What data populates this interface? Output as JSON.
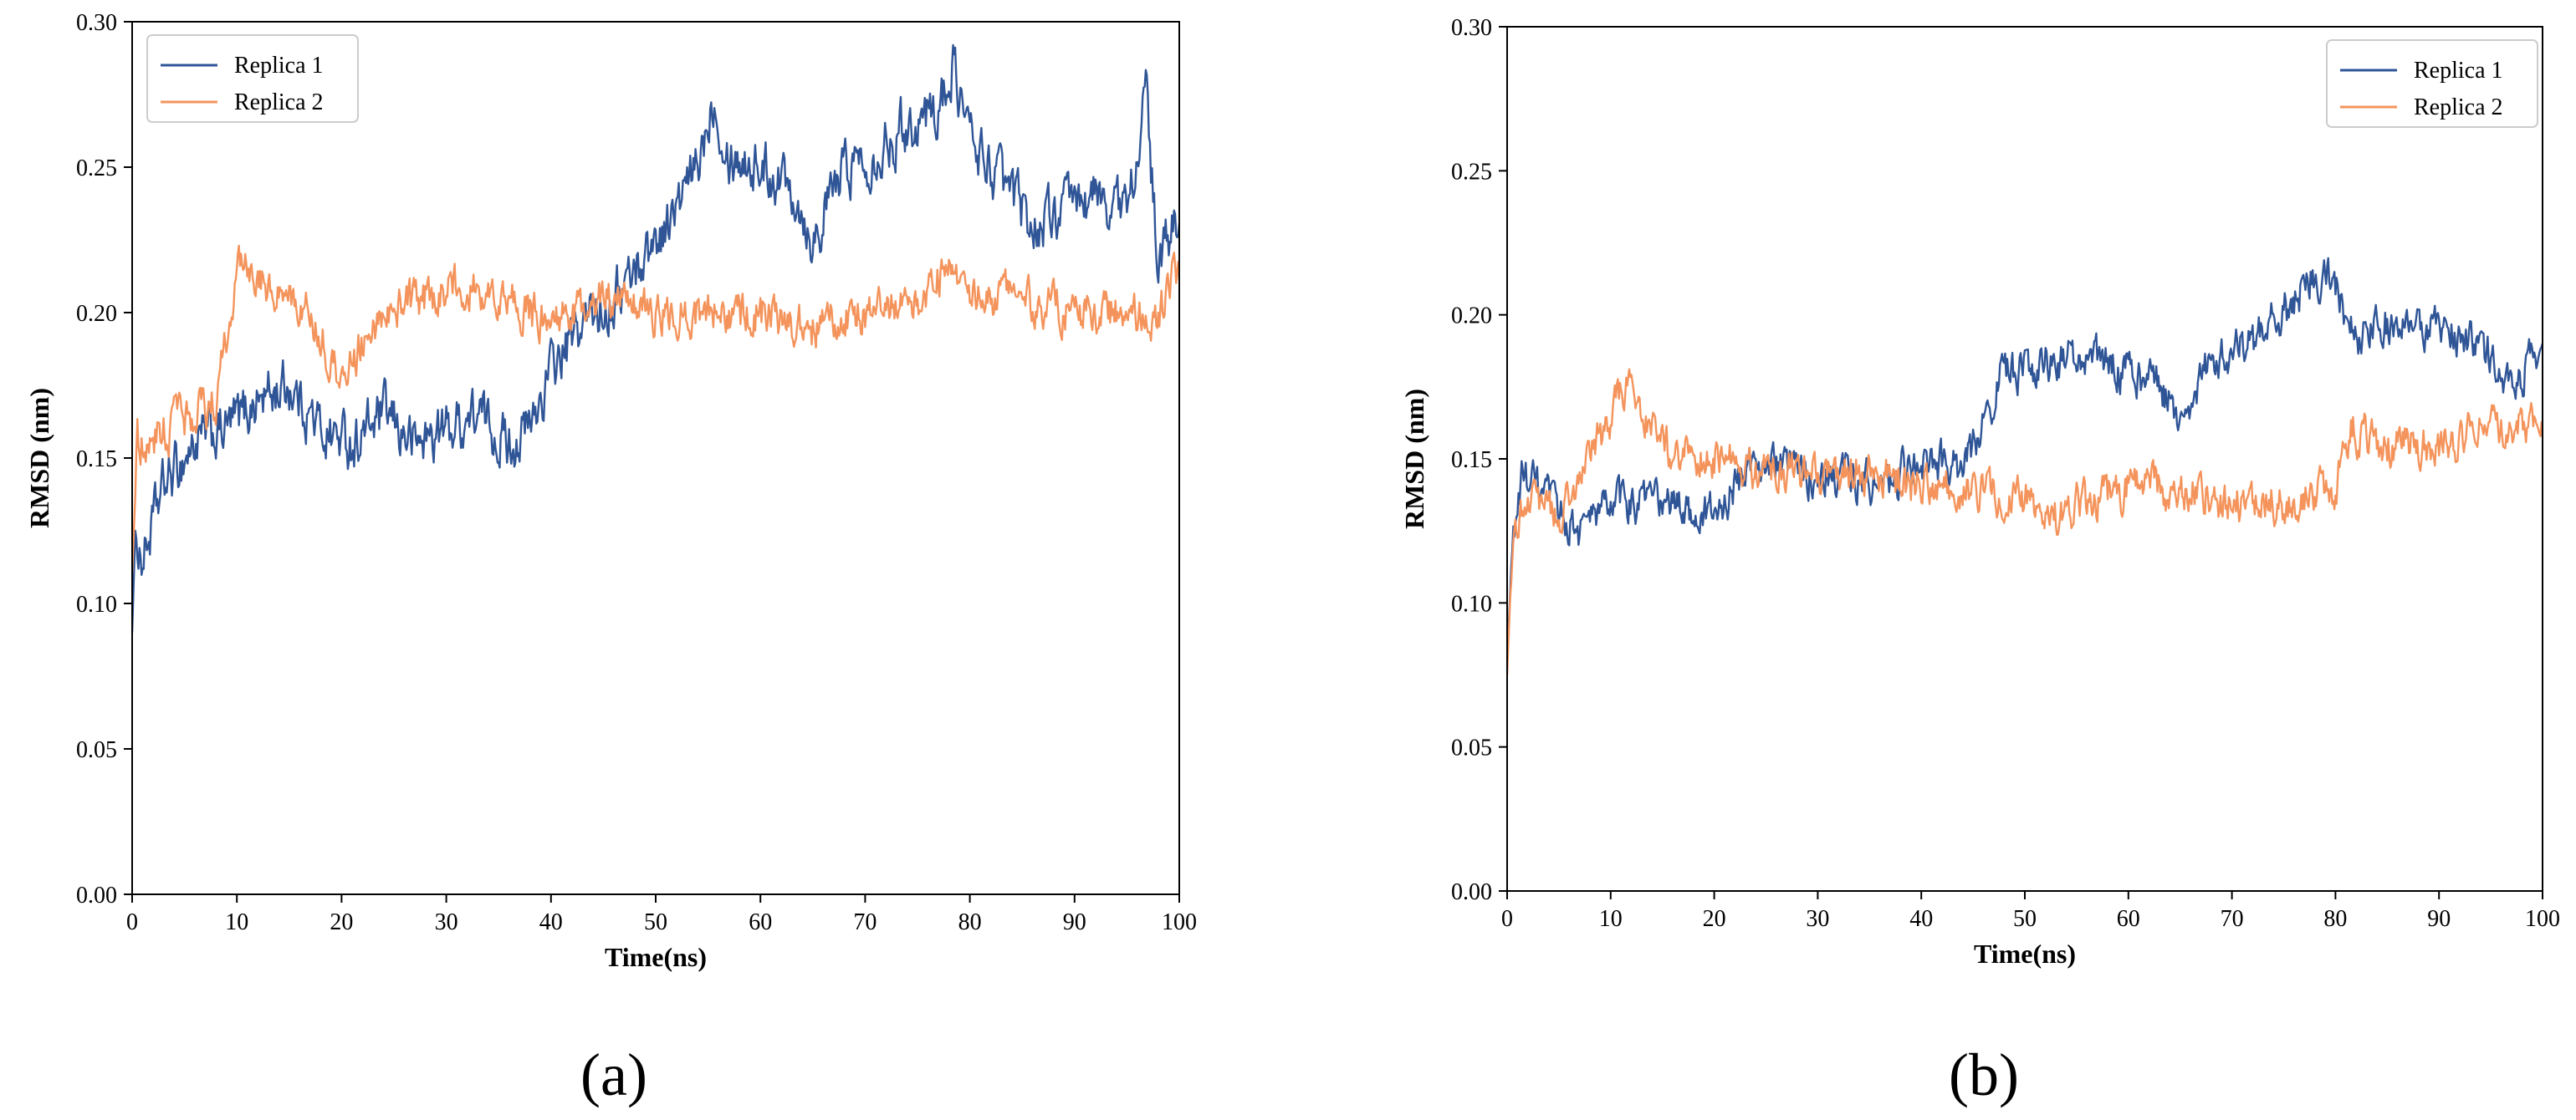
{
  "colors": {
    "replica1": "#2f5597",
    "replica2": "#f4945c"
  },
  "chart_data": [
    {
      "type": "line",
      "panel_label": "(a)",
      "xlabel": "Time(ns)",
      "ylabel": "RMSD (nm)",
      "xlim": [
        0,
        100
      ],
      "ylim": [
        0,
        0.3
      ],
      "xticks": [
        "0",
        "10",
        "20",
        "30",
        "40",
        "50",
        "60",
        "70",
        "80",
        "90",
        "100"
      ],
      "yticks": [
        "0.00",
        "0.05",
        "0.10",
        "0.15",
        "0.20",
        "0.25",
        "0.30"
      ],
      "legend_position": "top-left",
      "grid": false,
      "series": [
        {
          "name": "Replica 1",
          "color": "#2f5597",
          "noise": 0.009,
          "x": [
            0,
            0.3,
            1,
            3,
            6,
            9,
            12,
            15,
            18,
            21,
            24,
            27,
            30,
            33,
            36,
            38,
            40,
            42,
            44,
            46,
            48,
            50,
            52,
            54,
            55.5,
            57,
            60,
            63,
            65,
            68,
            71,
            74,
            77,
            78.5,
            80,
            83,
            86,
            89,
            92,
            95,
            96.8,
            98,
            100
          ],
          "y": [
            0.09,
            0.125,
            0.115,
            0.14,
            0.155,
            0.16,
            0.17,
            0.175,
            0.16,
            0.155,
            0.165,
            0.155,
            0.16,
            0.165,
            0.155,
            0.16,
            0.18,
            0.19,
            0.2,
            0.205,
            0.215,
            0.225,
            0.235,
            0.25,
            0.275,
            0.255,
            0.25,
            0.245,
            0.225,
            0.25,
            0.255,
            0.265,
            0.27,
            0.285,
            0.26,
            0.245,
            0.23,
            0.235,
            0.24,
            0.235,
            0.275,
            0.215,
            0.235
          ]
        },
        {
          "name": "Replica 2",
          "color": "#f4945c",
          "noise": 0.007,
          "x": [
            0,
            0.5,
            3,
            6,
            8,
            10,
            13,
            16,
            18,
            20,
            24,
            28,
            32,
            35,
            38,
            40,
            44,
            50,
            55,
            60,
            65,
            70,
            75,
            78,
            80,
            85,
            90,
            95,
            98,
            100
          ],
          "y": [
            0.11,
            0.155,
            0.16,
            0.165,
            0.17,
            0.215,
            0.21,
            0.205,
            0.19,
            0.18,
            0.2,
            0.205,
            0.21,
            0.205,
            0.2,
            0.195,
            0.205,
            0.2,
            0.2,
            0.2,
            0.195,
            0.2,
            0.205,
            0.215,
            0.205,
            0.205,
            0.2,
            0.2,
            0.2,
            0.215
          ]
        }
      ]
    },
    {
      "type": "line",
      "panel_label": "(b)",
      "xlabel": "Time(ns)",
      "ylabel": "RMSD (nm)",
      "xlim": [
        0,
        100
      ],
      "ylim": [
        0,
        0.3
      ],
      "xticks": [
        "0",
        "10",
        "20",
        "30",
        "40",
        "50",
        "60",
        "70",
        "80",
        "90",
        "100"
      ],
      "yticks": [
        "0.00",
        "0.05",
        "0.10",
        "0.15",
        "0.20",
        "0.25",
        "0.30"
      ],
      "legend_position": "top-right",
      "grid": false,
      "series": [
        {
          "name": "Replica 1",
          "color": "#2f5597",
          "noise": 0.007,
          "x": [
            0,
            0.5,
            1.5,
            4,
            7,
            10,
            15,
            20,
            24,
            28,
            32,
            36,
            40,
            44,
            46,
            48,
            50,
            53,
            56,
            60,
            63,
            65,
            68,
            72,
            76,
            78,
            80,
            82,
            84,
            86,
            90,
            94,
            97,
            100
          ],
          "y": [
            0.08,
            0.12,
            0.145,
            0.135,
            0.125,
            0.135,
            0.135,
            0.13,
            0.15,
            0.145,
            0.145,
            0.14,
            0.15,
            0.145,
            0.165,
            0.18,
            0.18,
            0.185,
            0.185,
            0.18,
            0.175,
            0.165,
            0.185,
            0.19,
            0.205,
            0.215,
            0.21,
            0.19,
            0.195,
            0.2,
            0.195,
            0.19,
            0.175,
            0.19
          ]
        },
        {
          "name": "Replica 2",
          "color": "#f4945c",
          "noise": 0.007,
          "x": [
            0,
            0.5,
            2,
            5,
            8,
            10,
            12,
            15,
            18,
            21,
            25,
            30,
            35,
            40,
            45,
            50,
            53,
            56,
            60,
            65,
            70,
            75,
            80,
            81.5,
            85,
            90,
            95,
            100
          ],
          "y": [
            0.075,
            0.12,
            0.14,
            0.13,
            0.15,
            0.165,
            0.175,
            0.155,
            0.15,
            0.15,
            0.145,
            0.145,
            0.145,
            0.14,
            0.14,
            0.135,
            0.13,
            0.135,
            0.14,
            0.14,
            0.135,
            0.135,
            0.14,
            0.16,
            0.155,
            0.155,
            0.16,
            0.165
          ]
        }
      ]
    }
  ]
}
